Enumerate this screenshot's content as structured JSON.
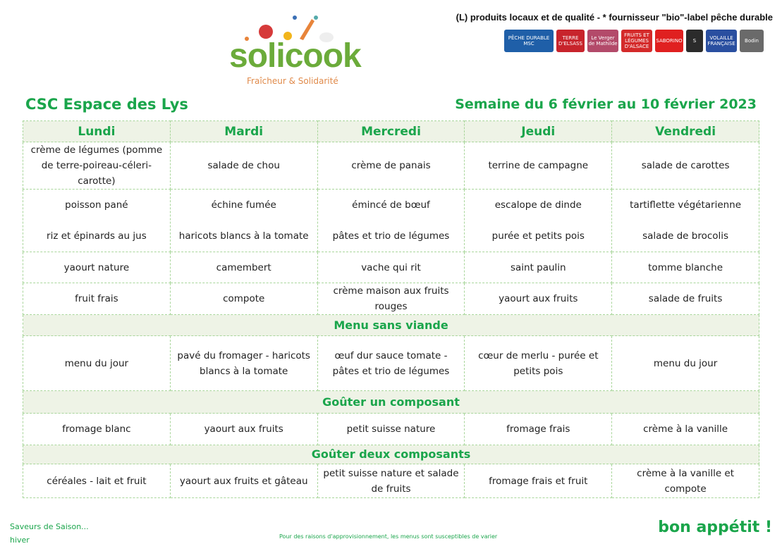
{
  "brand": {
    "name": "solicook",
    "tagline": "Fraîcheur & Solidarité"
  },
  "legend": "(L) produits locaux et de qualité  -  * fournisseur \"bio\"-label pêche durable",
  "labels": [
    {
      "name": "PÊCHE DURABLE MSC",
      "color": "#1f5fa8"
    },
    {
      "name": "TERRE D'ELSASS",
      "color": "#c8242c"
    },
    {
      "name": "Le Verger de Mathilde",
      "color": "#b34a6a"
    },
    {
      "name": "FRUITS ET LÉGUMES D'ALSACE",
      "color": "#d42a2a"
    },
    {
      "name": "SABORINO",
      "color": "#e02020"
    },
    {
      "name": "S",
      "color": "#2b2b2b"
    },
    {
      "name": "VOLAILLE FRANÇAISE",
      "color": "#2a4fa0"
    },
    {
      "name": "Bodin",
      "color": "#6a6a6a"
    }
  ],
  "site": "CSC Espace des Lys",
  "week": "Semaine du 6 février au 10 février 2023",
  "days": [
    "Lundi",
    "Mardi",
    "Mercredi",
    "Jeudi",
    "Vendredi"
  ],
  "entree": [
    "crème de légumes (pomme de terre-poireau-céleri-carotte)",
    "salade de chou",
    "crème de panais",
    "terrine de campagne",
    "salade de carottes"
  ],
  "plat": [
    "poisson pané",
    "échine fumée",
    "émincé de bœuf",
    "escalope de dinde",
    "tartiflette végétarienne"
  ],
  "accompagnement": [
    "riz et épinards au jus",
    "haricots blancs à la tomate",
    "pâtes et trio de légumes",
    "purée et petits pois",
    "salade de brocolis"
  ],
  "fromage": [
    "yaourt nature",
    "camembert",
    "vache qui rit",
    "saint paulin",
    "tomme blanche"
  ],
  "dessert": [
    "fruit frais",
    "compote",
    "crème maison aux fruits rouges",
    "yaourt aux fruits",
    "salade de fruits"
  ],
  "sans_viande": {
    "title": "Menu sans viande",
    "items": [
      "menu du jour",
      "pavé du fromager - haricots blancs à la tomate",
      "œuf dur sauce tomate - pâtes et trio de légumes",
      "cœur de merlu - purée et petits pois",
      "menu du jour"
    ]
  },
  "gouter1": {
    "title": "Goûter un composant",
    "items": [
      "fromage blanc",
      "yaourt aux fruits",
      "petit suisse nature",
      "fromage frais",
      "crème à la vanille"
    ]
  },
  "gouter2": {
    "title": "Goûter deux composants",
    "items": [
      "céréales - lait et fruit",
      "yaourt aux fruits et gâteau",
      "petit suisse nature et salade de fruits",
      "fromage frais et fruit",
      "crème à la vanille et compote"
    ]
  },
  "footer": {
    "season_label": "Saveurs de Saison...",
    "season": "hiver",
    "note": "Pour des raisons d'approvisionnement, les menus sont susceptibles de varier",
    "closing": "bon appétit !"
  }
}
